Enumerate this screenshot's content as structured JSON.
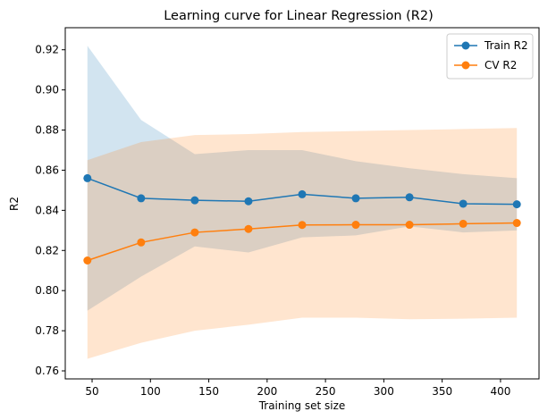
{
  "chart_data": {
    "type": "line",
    "title": "Learning curve for Linear Regression (R2)",
    "xlabel": "Training set size",
    "ylabel": "R2",
    "xlim": [
      27,
      433
    ],
    "ylim": [
      0.756,
      0.931
    ],
    "xticks": [
      50,
      100,
      150,
      200,
      250,
      300,
      350,
      400
    ],
    "yticks": [
      0.76,
      0.78,
      0.8,
      0.82,
      0.84,
      0.86,
      0.88,
      0.9,
      0.92
    ],
    "grid": false,
    "legend_position": "top-right",
    "x": [
      46,
      92,
      138,
      184,
      230,
      276,
      322,
      368,
      414
    ],
    "series": [
      {
        "name": "Train R2",
        "color": "#1f77b4",
        "values": [
          0.856,
          0.846,
          0.845,
          0.8445,
          0.848,
          0.846,
          0.8465,
          0.8433,
          0.843
        ],
        "band_upper": [
          0.922,
          0.885,
          0.868,
          0.87,
          0.87,
          0.8645,
          0.861,
          0.858,
          0.856
        ],
        "band_lower": [
          0.79,
          0.807,
          0.822,
          0.819,
          0.8265,
          0.8275,
          0.832,
          0.829,
          0.83
        ]
      },
      {
        "name": "CV R2",
        "color": "#ff7f0e",
        "values": [
          0.815,
          0.824,
          0.829,
          0.8307,
          0.8327,
          0.8328,
          0.8328,
          0.8333,
          0.8337
        ],
        "band_upper": [
          0.865,
          0.874,
          0.8775,
          0.878,
          0.879,
          0.8795,
          0.88,
          0.8805,
          0.881
        ],
        "band_lower": [
          0.766,
          0.774,
          0.78,
          0.783,
          0.7865,
          0.7865,
          0.7857,
          0.786,
          0.7865
        ]
      }
    ]
  }
}
